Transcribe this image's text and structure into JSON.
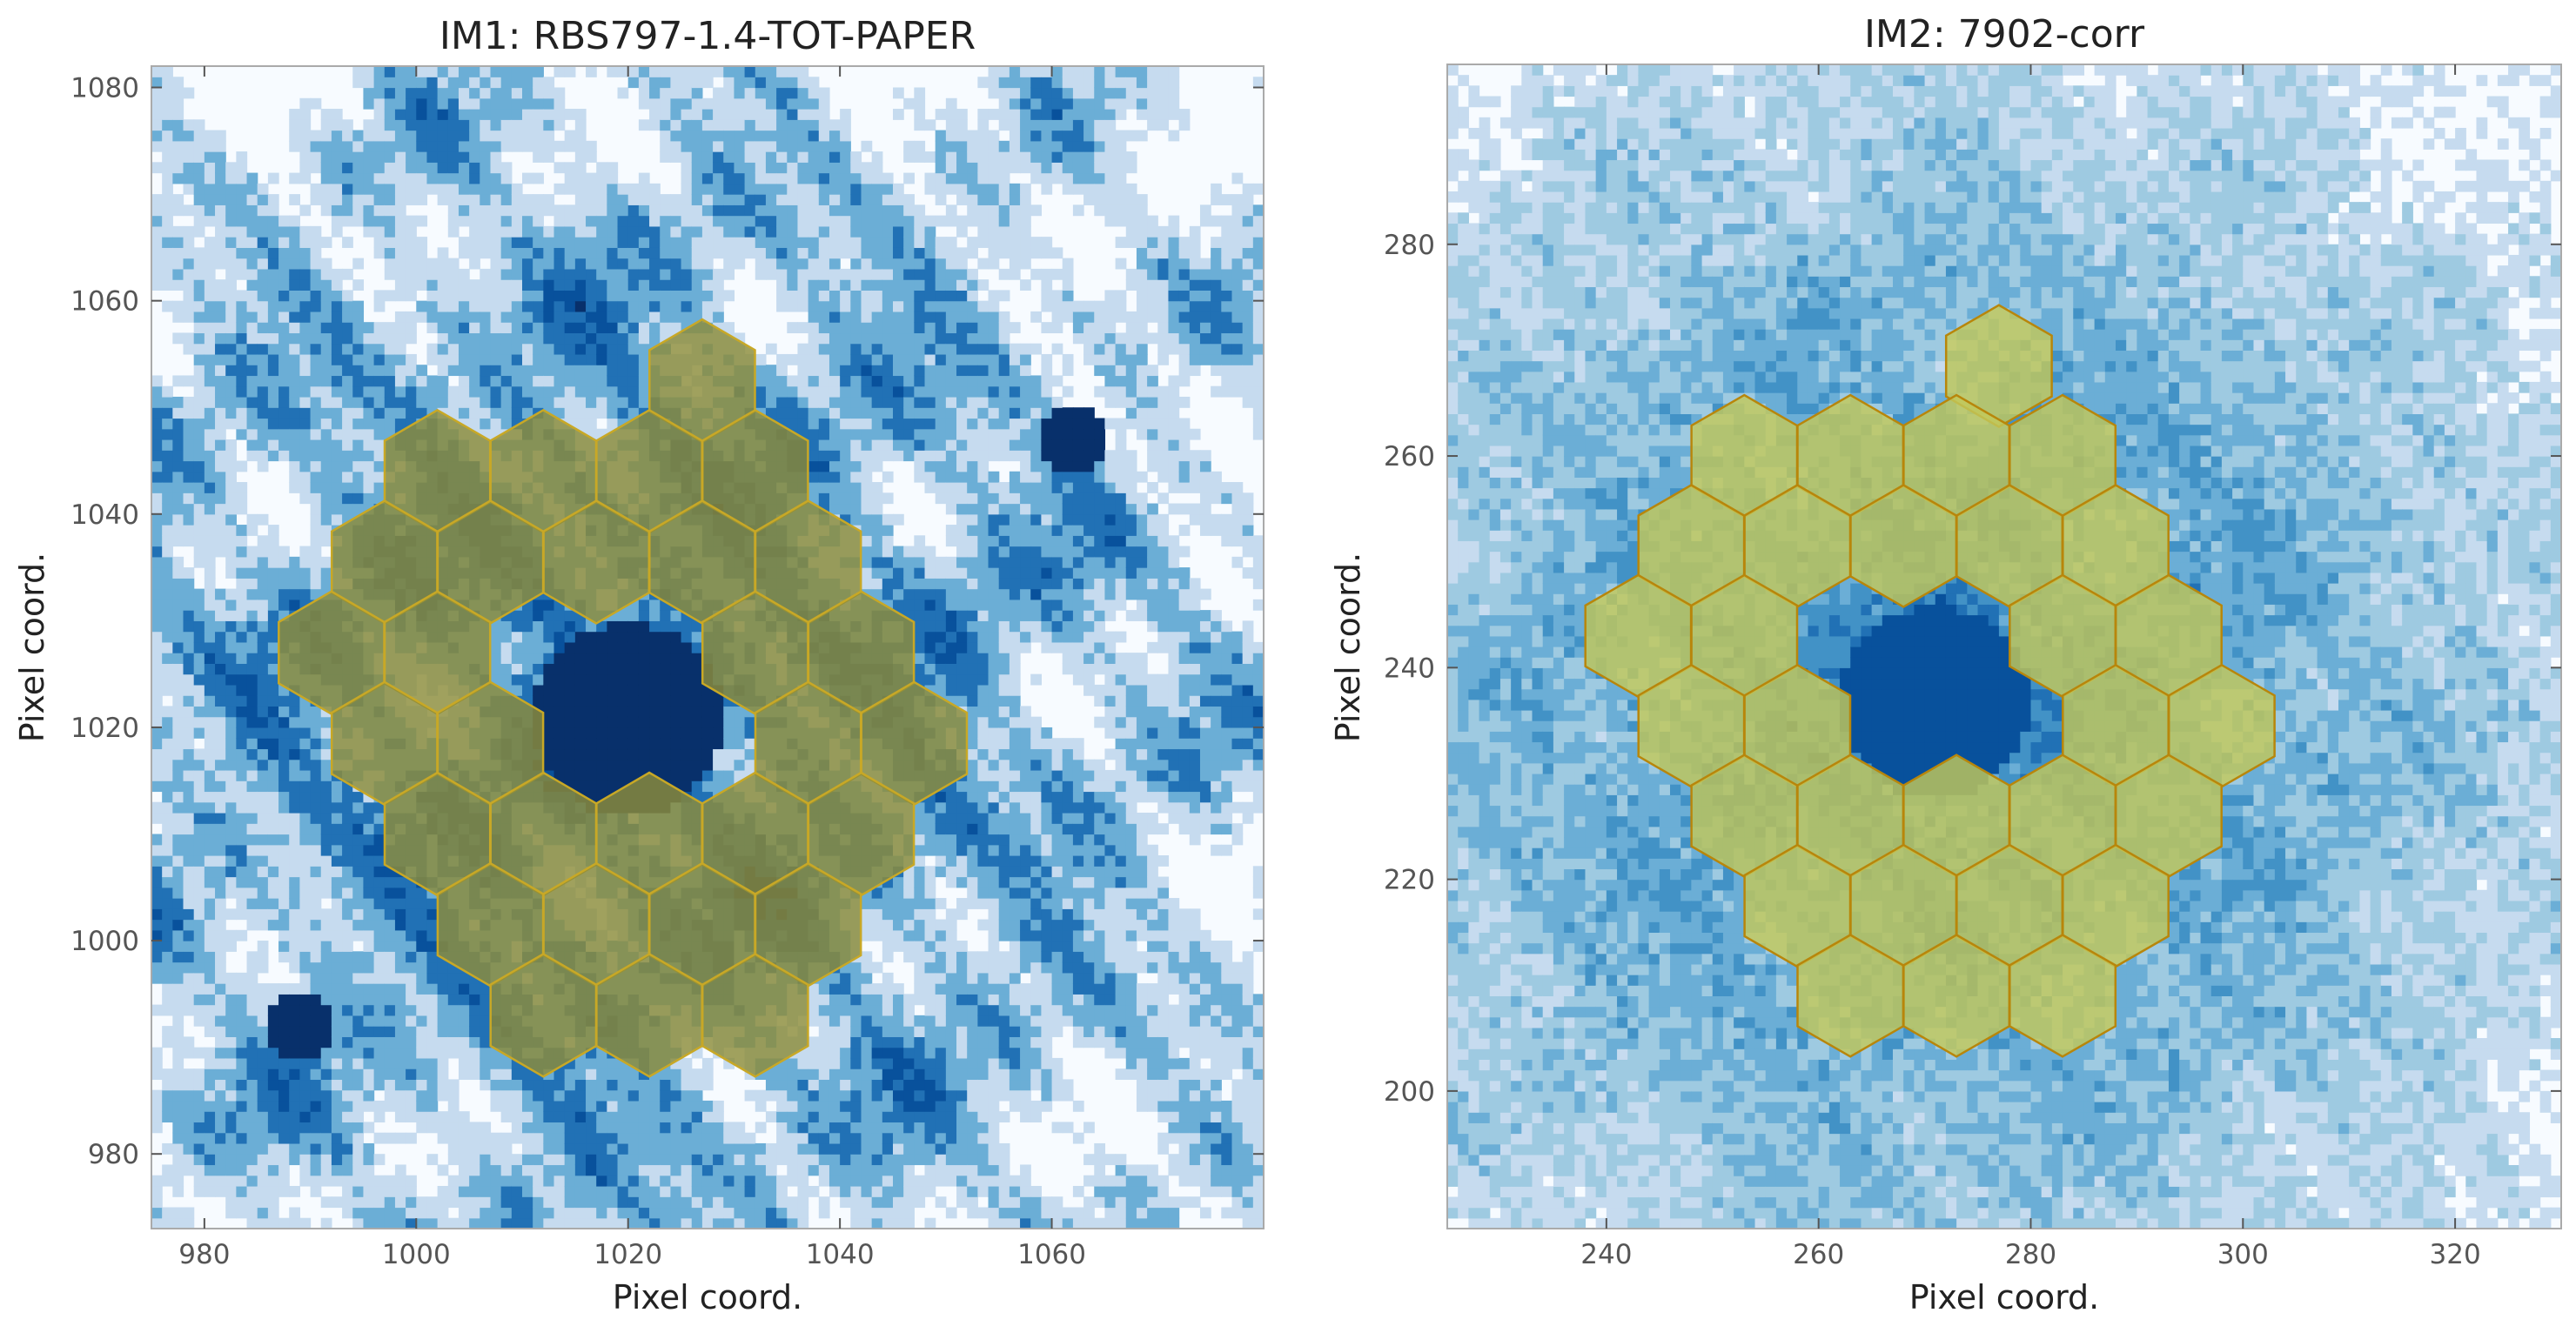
{
  "chart_data": [
    {
      "type": "heatmap",
      "title": "IM1: RBS797-1.4-TOT-PAPER",
      "xlabel": "Pixel coord.",
      "ylabel": "Pixel coord.",
      "xlim": [
        975,
        1080
      ],
      "ylim": [
        973,
        1082
      ],
      "xticks": [
        980,
        1000,
        1020,
        1040,
        1060
      ],
      "yticks": [
        980,
        1000,
        1020,
        1040,
        1060,
        1080
      ],
      "xtick_labels": [
        "980",
        "1000",
        "1020",
        "1040",
        "1060"
      ],
      "ytick_labels": [
        "980",
        "1000",
        "1020",
        "1040",
        "1060",
        "1080"
      ],
      "colormap": [
        "#f7fbff",
        "#c6dbef",
        "#6baed6",
        "#2171b5",
        "#08519c",
        "#08306b"
      ],
      "contours": true,
      "hexagon_overlay": {
        "count": 30,
        "hex_radius": 5.75,
        "centers": [
          [
            1027,
            1052.5
          ],
          [
            1002,
            1044
          ],
          [
            1012,
            1044
          ],
          [
            1022,
            1044
          ],
          [
            1032,
            1044
          ],
          [
            997,
            1035.5
          ],
          [
            1007,
            1035.5
          ],
          [
            1017,
            1035.5
          ],
          [
            1027,
            1035.5
          ],
          [
            1037,
            1035.5
          ],
          [
            992,
            1027
          ],
          [
            1002,
            1027
          ],
          [
            1032,
            1027
          ],
          [
            1042,
            1027
          ],
          [
            997,
            1018.5
          ],
          [
            1007,
            1018.5
          ],
          [
            1037,
            1018.5
          ],
          [
            1047,
            1018.5
          ],
          [
            1002,
            1010
          ],
          [
            1012,
            1010
          ],
          [
            1022,
            1010
          ],
          [
            1032,
            1010
          ],
          [
            1042,
            1010
          ],
          [
            1007,
            1001.5
          ],
          [
            1017,
            1001.5
          ],
          [
            1027,
            1001.5
          ],
          [
            1037,
            1001.5
          ],
          [
            1012,
            993
          ],
          [
            1022,
            993
          ],
          [
            1032,
            993
          ]
        ],
        "fill": "#8c8c3a",
        "stroke": "#c8a826"
      }
    },
    {
      "type": "heatmap",
      "title": "IM2: 7902-corr",
      "xlabel": "Pixel coord.",
      "ylabel": "Pixel coord.",
      "xlim": [
        225,
        330
      ],
      "ylim": [
        187,
        297
      ],
      "xticks": [
        240,
        260,
        280,
        300,
        320
      ],
      "yticks": [
        200,
        220,
        240,
        260,
        280
      ],
      "xtick_labels": [
        "240",
        "260",
        "280",
        "300",
        "320"
      ],
      "ytick_labels": [
        "200",
        "220",
        "240",
        "260",
        "280"
      ],
      "colormap": [
        "#f7fbff",
        "#c6dbef",
        "#9ecae1",
        "#6baed6",
        "#4292c6",
        "#2171b5",
        "#08519c"
      ],
      "contours": false,
      "hexagon_overlay": {
        "count": 30,
        "hex_radius": 5.75,
        "centers": [
          [
            277,
            268.5
          ],
          [
            253,
            260
          ],
          [
            263,
            260
          ],
          [
            273,
            260
          ],
          [
            283,
            260
          ],
          [
            248,
            251.5
          ],
          [
            258,
            251.5
          ],
          [
            268,
            251.5
          ],
          [
            278,
            251.5
          ],
          [
            288,
            251.5
          ],
          [
            243,
            243
          ],
          [
            253,
            243
          ],
          [
            283,
            243
          ],
          [
            293,
            243
          ],
          [
            248,
            234.5
          ],
          [
            258,
            234.5
          ],
          [
            288,
            234.5
          ],
          [
            298,
            234.5
          ],
          [
            253,
            226
          ],
          [
            263,
            226
          ],
          [
            273,
            226
          ],
          [
            283,
            226
          ],
          [
            293,
            226
          ],
          [
            258,
            217.5
          ],
          [
            268,
            217.5
          ],
          [
            278,
            217.5
          ],
          [
            288,
            217.5
          ],
          [
            263,
            209
          ],
          [
            273,
            209
          ],
          [
            283,
            209
          ]
        ],
        "fill": "#c2c85a",
        "stroke": "#b8860b"
      }
    }
  ]
}
